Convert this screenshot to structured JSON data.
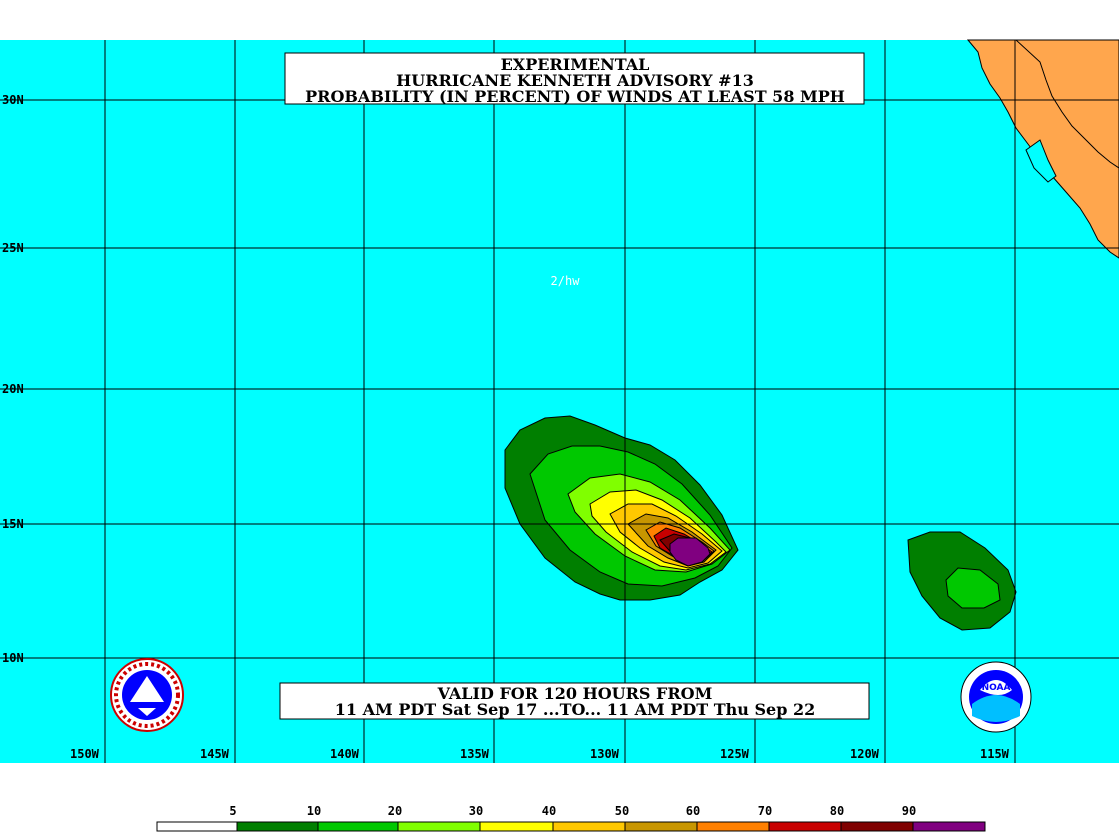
{
  "title": {
    "line1": "EXPERIMENTAL",
    "line2": "HURRICANE KENNETH ADVISORY #13",
    "line3": "PROBABILITY (IN PERCENT) OF WINDS AT LEAST 58 MPH"
  },
  "valid": {
    "line1": "VALID FOR 120 HOURS FROM",
    "line2": "11 AM PDT Sat Sep 17 ...TO... 11 AM PDT Thu Sep 22"
  },
  "note": "2/hw",
  "lat_labels": [
    "30N",
    "25N",
    "20N",
    "15N",
    "10N"
  ],
  "lon_labels": [
    "150W",
    "145W",
    "140W",
    "135W",
    "130W",
    "125W",
    "120W",
    "115W"
  ],
  "legend": {
    "labels": [
      "5",
      "10",
      "20",
      "30",
      "40",
      "50",
      "60",
      "70",
      "80",
      "90"
    ],
    "colors": [
      "#ffffff",
      "#007f00",
      "#00c800",
      "#80ff00",
      "#ffff00",
      "#ffc800",
      "#c89600",
      "#ff8000",
      "#c80000",
      "#7f0000",
      "#800080"
    ]
  },
  "colors": {
    "ocean": "#00ffff",
    "land": "#ffa64d",
    "grid": "#000000"
  },
  "logos": {
    "left": "nws-logo",
    "right": "noaa-logo"
  }
}
